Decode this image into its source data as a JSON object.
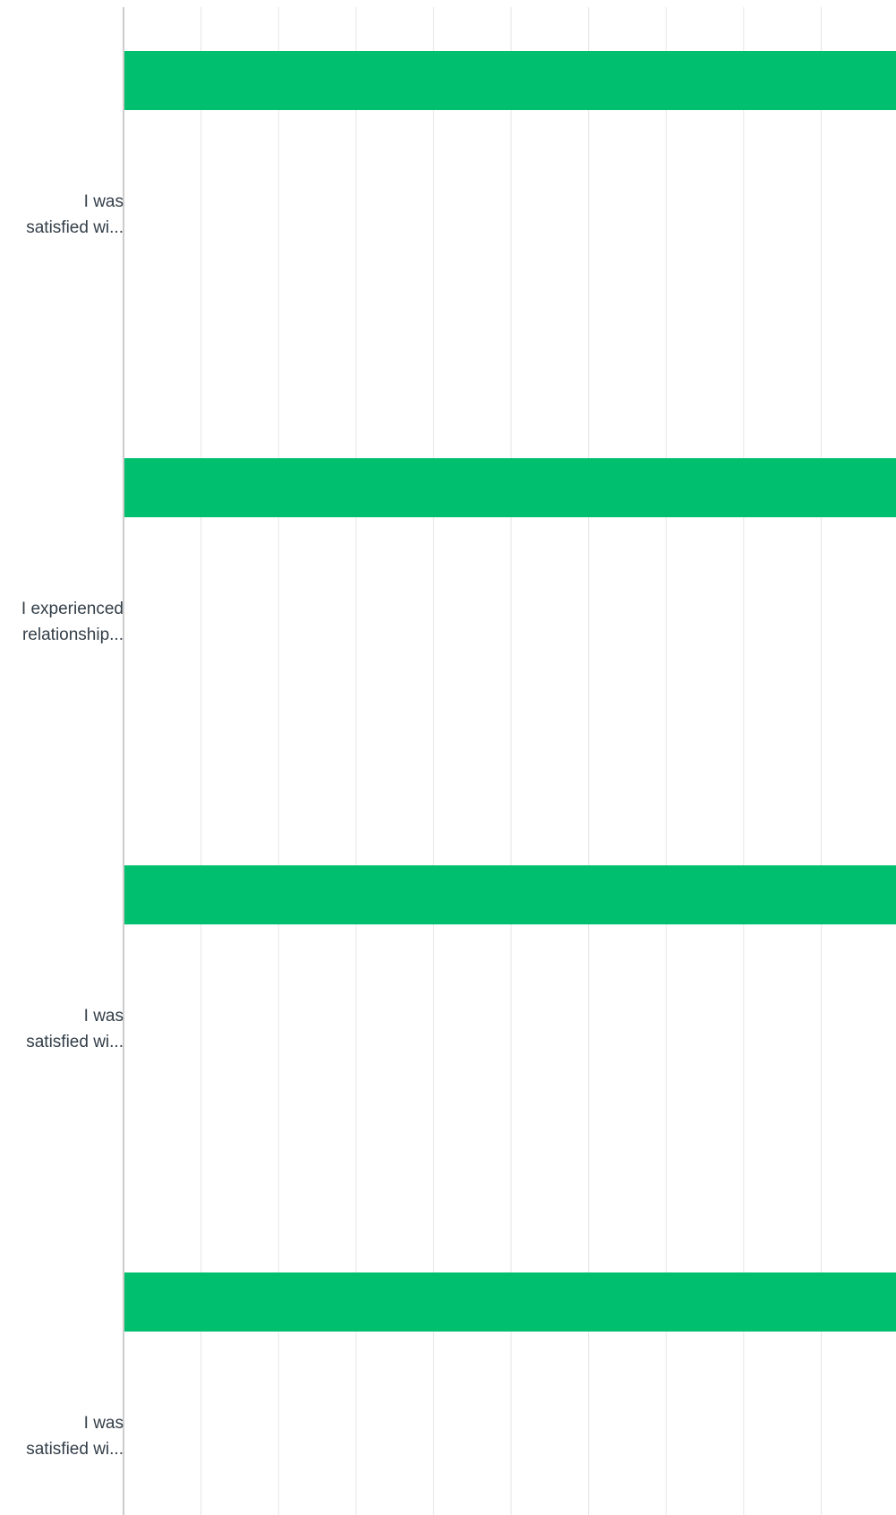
{
  "chart_data": {
    "type": "bar",
    "orientation": "horizontal",
    "categories": [
      [
        "I was",
        "satisfied wi..."
      ],
      [
        "I experienced",
        "relationship..."
      ],
      [
        "I was",
        "satisfied wi..."
      ],
      [
        "I was",
        "satisfied wi..."
      ]
    ],
    "series": [
      {
        "values": [
          1,
          1,
          1,
          1
        ]
      }
    ],
    "xlim": [
      0,
      1
    ],
    "grid": true,
    "legend": "none",
    "colors": {
      "bar": "#00bf6f",
      "grid": "#e6e6e6",
      "axis": "#cccccc",
      "label": "#333e48"
    }
  }
}
